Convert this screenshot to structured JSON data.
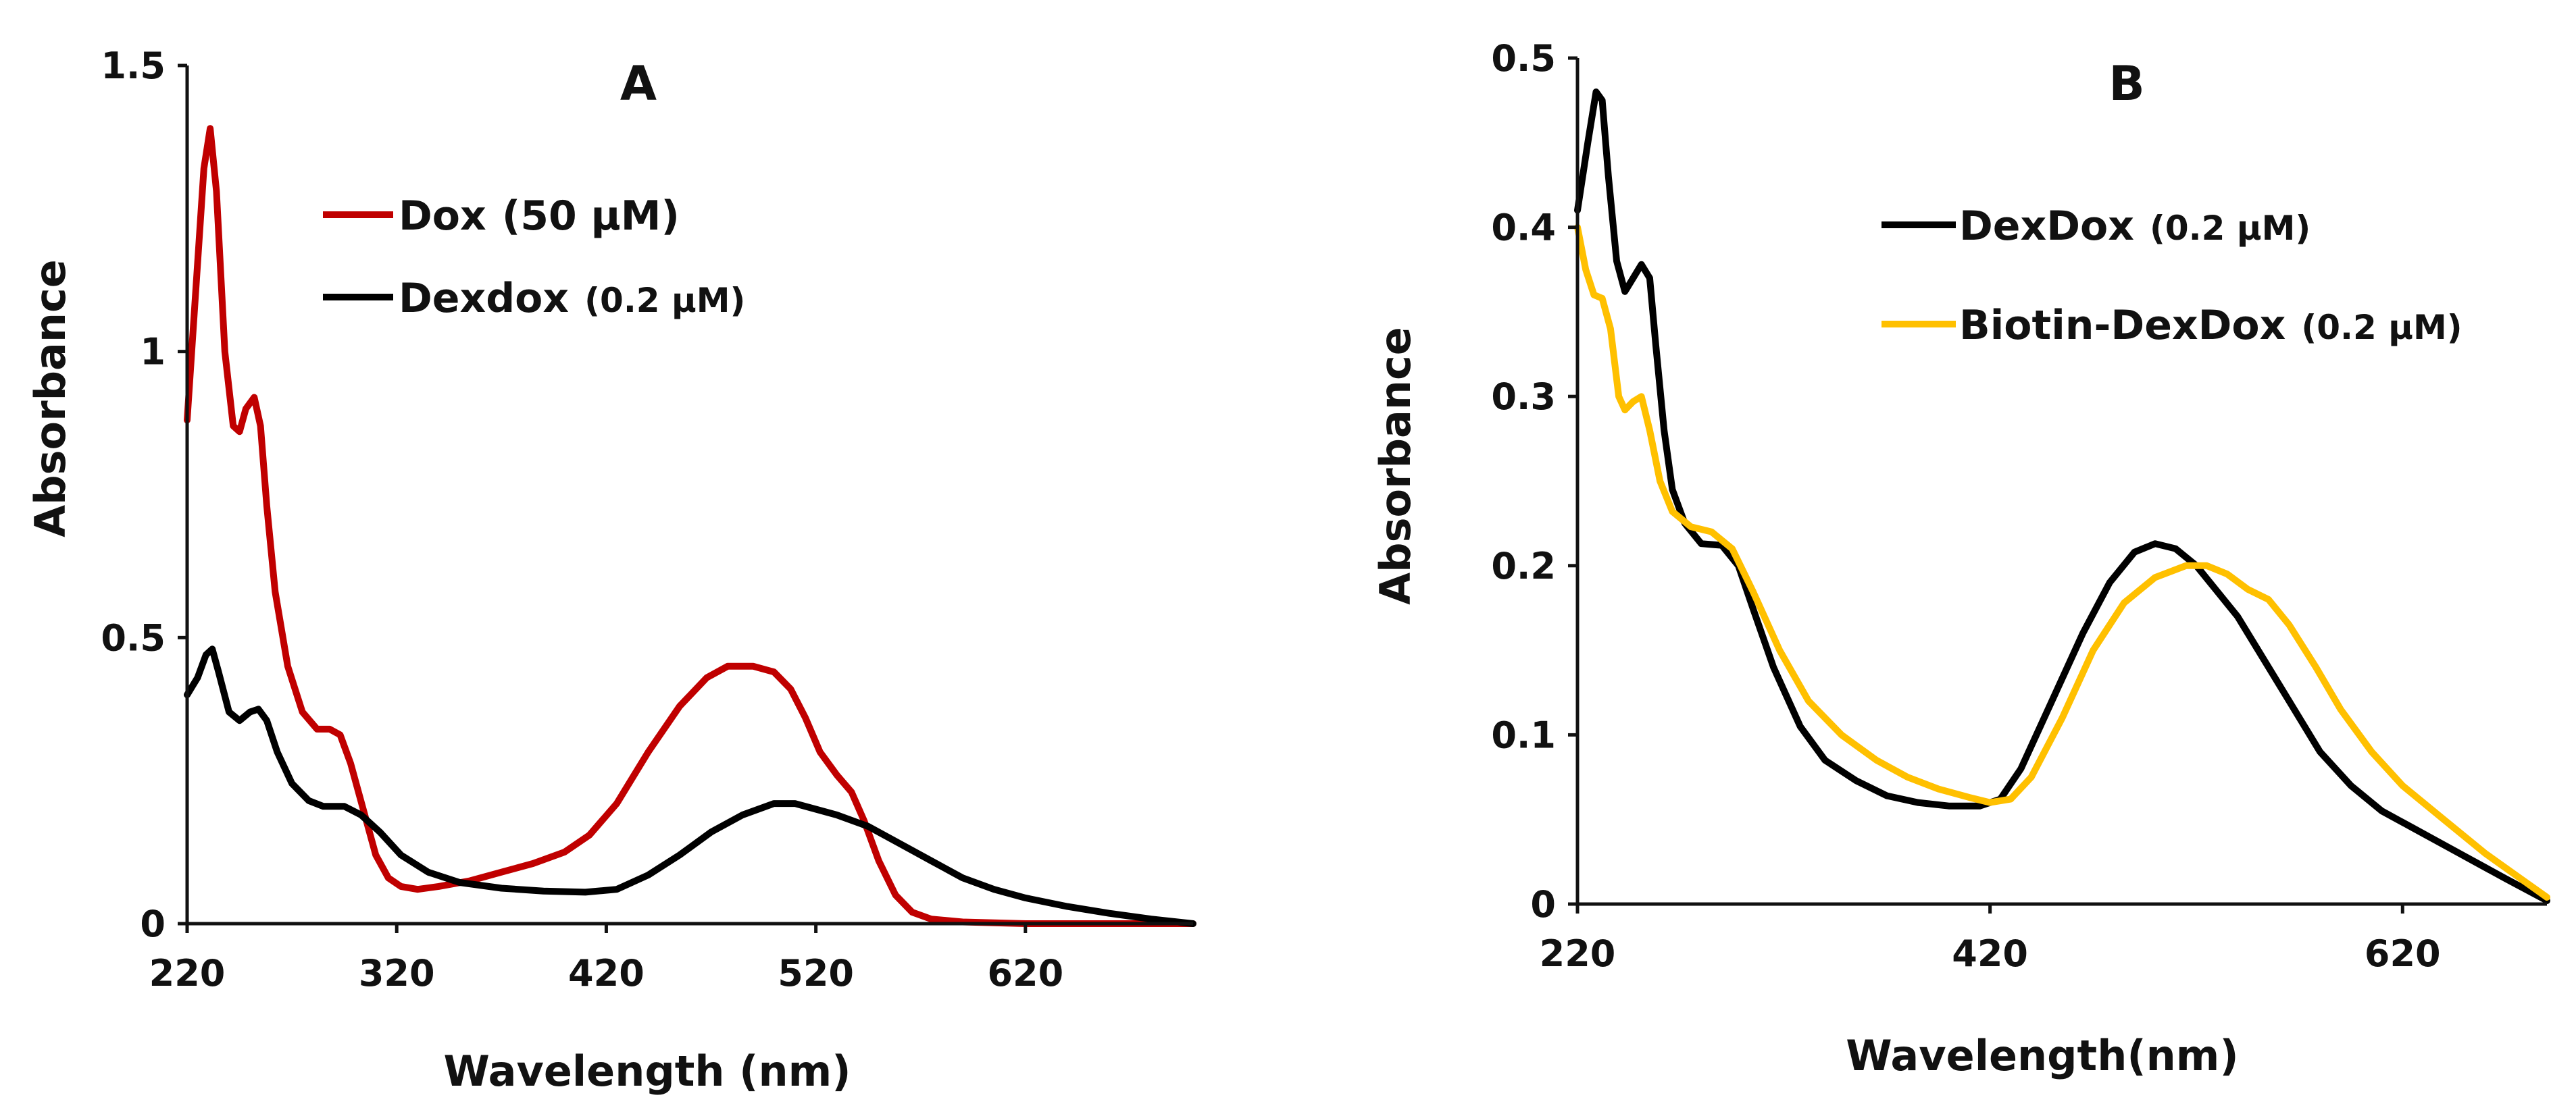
{
  "chart_data": [
    {
      "type": "line",
      "title": "A",
      "xlabel": "Wavelength (nm)",
      "ylabel": "Absorbance",
      "xlim": [
        220,
        700
      ],
      "ylim": [
        0,
        1.5
      ],
      "x_ticks": [
        220,
        320,
        420,
        520,
        620
      ],
      "x_tick_labels": [
        "220",
        "320",
        "420",
        "520",
        "620"
      ],
      "y_ticks": [
        0,
        0.5,
        1,
        1.5
      ],
      "y_tick_labels": [
        "0",
        "0.5",
        "1",
        "1.5"
      ],
      "legend_position": "top-center",
      "grid": false,
      "series": [
        {
          "name": "Dox",
          "concentration": "(50 μM)",
          "color": "#c00000",
          "points": [
            [
              220,
              0.88
            ],
            [
              224,
              1.1
            ],
            [
              228,
              1.32
            ],
            [
              231,
              1.39
            ],
            [
              234,
              1.28
            ],
            [
              238,
              1.0
            ],
            [
              242,
              0.87
            ],
            [
              245,
              0.86
            ],
            [
              248,
              0.9
            ],
            [
              252,
              0.92
            ],
            [
              255,
              0.87
            ],
            [
              258,
              0.73
            ],
            [
              262,
              0.58
            ],
            [
              268,
              0.45
            ],
            [
              275,
              0.37
            ],
            [
              282,
              0.34
            ],
            [
              288,
              0.34
            ],
            [
              293,
              0.33
            ],
            [
              298,
              0.28
            ],
            [
              304,
              0.2
            ],
            [
              310,
              0.12
            ],
            [
              316,
              0.08
            ],
            [
              322,
              0.065
            ],
            [
              330,
              0.06
            ],
            [
              340,
              0.065
            ],
            [
              355,
              0.075
            ],
            [
              370,
              0.09
            ],
            [
              385,
              0.105
            ],
            [
              400,
              0.125
            ],
            [
              412,
              0.155
            ],
            [
              425,
              0.21
            ],
            [
              440,
              0.3
            ],
            [
              455,
              0.38
            ],
            [
              468,
              0.43
            ],
            [
              478,
              0.45
            ],
            [
              490,
              0.45
            ],
            [
              500,
              0.44
            ],
            [
              508,
              0.41
            ],
            [
              515,
              0.36
            ],
            [
              522,
              0.3
            ],
            [
              530,
              0.26
            ],
            [
              537,
              0.23
            ],
            [
              543,
              0.18
            ],
            [
              550,
              0.11
            ],
            [
              558,
              0.05
            ],
            [
              566,
              0.02
            ],
            [
              575,
              0.008
            ],
            [
              590,
              0.003
            ],
            [
              620,
              0.0
            ],
            [
              700,
              0.0
            ]
          ]
        },
        {
          "name": "Dexdox",
          "concentration": "(0.2 μM)",
          "color": "#000000",
          "points": [
            [
              220,
              0.4
            ],
            [
              225,
              0.43
            ],
            [
              229,
              0.47
            ],
            [
              232,
              0.48
            ],
            [
              235,
              0.44
            ],
            [
              240,
              0.37
            ],
            [
              245,
              0.355
            ],
            [
              250,
              0.37
            ],
            [
              254,
              0.375
            ],
            [
              258,
              0.355
            ],
            [
              263,
              0.3
            ],
            [
              270,
              0.245
            ],
            [
              278,
              0.215
            ],
            [
              285,
              0.205
            ],
            [
              295,
              0.205
            ],
            [
              303,
              0.19
            ],
            [
              312,
              0.16
            ],
            [
              322,
              0.12
            ],
            [
              335,
              0.09
            ],
            [
              350,
              0.072
            ],
            [
              370,
              0.062
            ],
            [
              390,
              0.057
            ],
            [
              410,
              0.055
            ],
            [
              425,
              0.06
            ],
            [
              440,
              0.085
            ],
            [
              455,
              0.12
            ],
            [
              470,
              0.16
            ],
            [
              485,
              0.19
            ],
            [
              500,
              0.21
            ],
            [
              510,
              0.21
            ],
            [
              520,
              0.2
            ],
            [
              530,
              0.19
            ],
            [
              545,
              0.17
            ],
            [
              560,
              0.14
            ],
            [
              575,
              0.11
            ],
            [
              590,
              0.08
            ],
            [
              605,
              0.06
            ],
            [
              620,
              0.045
            ],
            [
              640,
              0.03
            ],
            [
              660,
              0.018
            ],
            [
              680,
              0.008
            ],
            [
              700,
              0.0
            ]
          ]
        }
      ]
    },
    {
      "type": "line",
      "title": "B",
      "xlabel": "Wavelength(nm)",
      "ylabel": "Absorbance",
      "xlim": [
        220,
        690
      ],
      "ylim": [
        0,
        0.5
      ],
      "x_ticks": [
        220,
        420,
        620
      ],
      "x_tick_labels": [
        "220",
        "420",
        "620"
      ],
      "y_ticks": [
        0,
        0.1,
        0.2,
        0.3,
        0.4,
        0.5
      ],
      "y_tick_labels": [
        "0",
        "0.1",
        "0.2",
        "0.3",
        "0.4",
        "0.5"
      ],
      "legend_position": "top-center",
      "grid": false,
      "series": [
        {
          "name": "DexDox",
          "concentration": "(0.2 μM)",
          "color": "#000000",
          "points": [
            [
              220,
              0.41
            ],
            [
              225,
              0.45
            ],
            [
              229,
              0.48
            ],
            [
              232,
              0.475
            ],
            [
              235,
              0.43
            ],
            [
              239,
              0.38
            ],
            [
              243,
              0.362
            ],
            [
              247,
              0.37
            ],
            [
              251,
              0.378
            ],
            [
              255,
              0.37
            ],
            [
              258,
              0.33
            ],
            [
              262,
              0.28
            ],
            [
              266,
              0.245
            ],
            [
              272,
              0.225
            ],
            [
              280,
              0.213
            ],
            [
              290,
              0.212
            ],
            [
              298,
              0.2
            ],
            [
              305,
              0.175
            ],
            [
              315,
              0.14
            ],
            [
              328,
              0.105
            ],
            [
              340,
              0.085
            ],
            [
              355,
              0.073
            ],
            [
              370,
              0.064
            ],
            [
              385,
              0.06
            ],
            [
              400,
              0.058
            ],
            [
              415,
              0.058
            ],
            [
              425,
              0.062
            ],
            [
              435,
              0.08
            ],
            [
              450,
              0.12
            ],
            [
              465,
              0.16
            ],
            [
              478,
              0.19
            ],
            [
              490,
              0.208
            ],
            [
              500,
              0.213
            ],
            [
              510,
              0.21
            ],
            [
              520,
              0.2
            ],
            [
              530,
              0.185
            ],
            [
              540,
              0.17
            ],
            [
              550,
              0.15
            ],
            [
              565,
              0.12
            ],
            [
              580,
              0.09
            ],
            [
              595,
              0.07
            ],
            [
              610,
              0.055
            ],
            [
              625,
              0.045
            ],
            [
              640,
              0.035
            ],
            [
              655,
              0.025
            ],
            [
              670,
              0.015
            ],
            [
              690,
              0.002
            ]
          ]
        },
        {
          "name": "Biotin-DexDox",
          "concentration": "(0.2 μM)",
          "color": "#ffc000",
          "points": [
            [
              220,
              0.4
            ],
            [
              224,
              0.375
            ],
            [
              228,
              0.36
            ],
            [
              232,
              0.358
            ],
            [
              236,
              0.34
            ],
            [
              240,
              0.3
            ],
            [
              243,
              0.292
            ],
            [
              247,
              0.297
            ],
            [
              251,
              0.3
            ],
            [
              255,
              0.28
            ],
            [
              260,
              0.25
            ],
            [
              266,
              0.232
            ],
            [
              275,
              0.223
            ],
            [
              285,
              0.22
            ],
            [
              295,
              0.21
            ],
            [
              305,
              0.185
            ],
            [
              318,
              0.15
            ],
            [
              332,
              0.12
            ],
            [
              348,
              0.1
            ],
            [
              365,
              0.085
            ],
            [
              380,
              0.075
            ],
            [
              395,
              0.068
            ],
            [
              410,
              0.063
            ],
            [
              420,
              0.06
            ],
            [
              430,
              0.062
            ],
            [
              440,
              0.075
            ],
            [
              455,
              0.11
            ],
            [
              470,
              0.15
            ],
            [
              485,
              0.178
            ],
            [
              500,
              0.193
            ],
            [
              515,
              0.2
            ],
            [
              525,
              0.2
            ],
            [
              535,
              0.195
            ],
            [
              545,
              0.186
            ],
            [
              555,
              0.18
            ],
            [
              565,
              0.165
            ],
            [
              578,
              0.14
            ],
            [
              590,
              0.115
            ],
            [
              605,
              0.09
            ],
            [
              620,
              0.07
            ],
            [
              640,
              0.05
            ],
            [
              660,
              0.03
            ],
            [
              675,
              0.017
            ],
            [
              690,
              0.004
            ]
          ]
        }
      ]
    }
  ]
}
